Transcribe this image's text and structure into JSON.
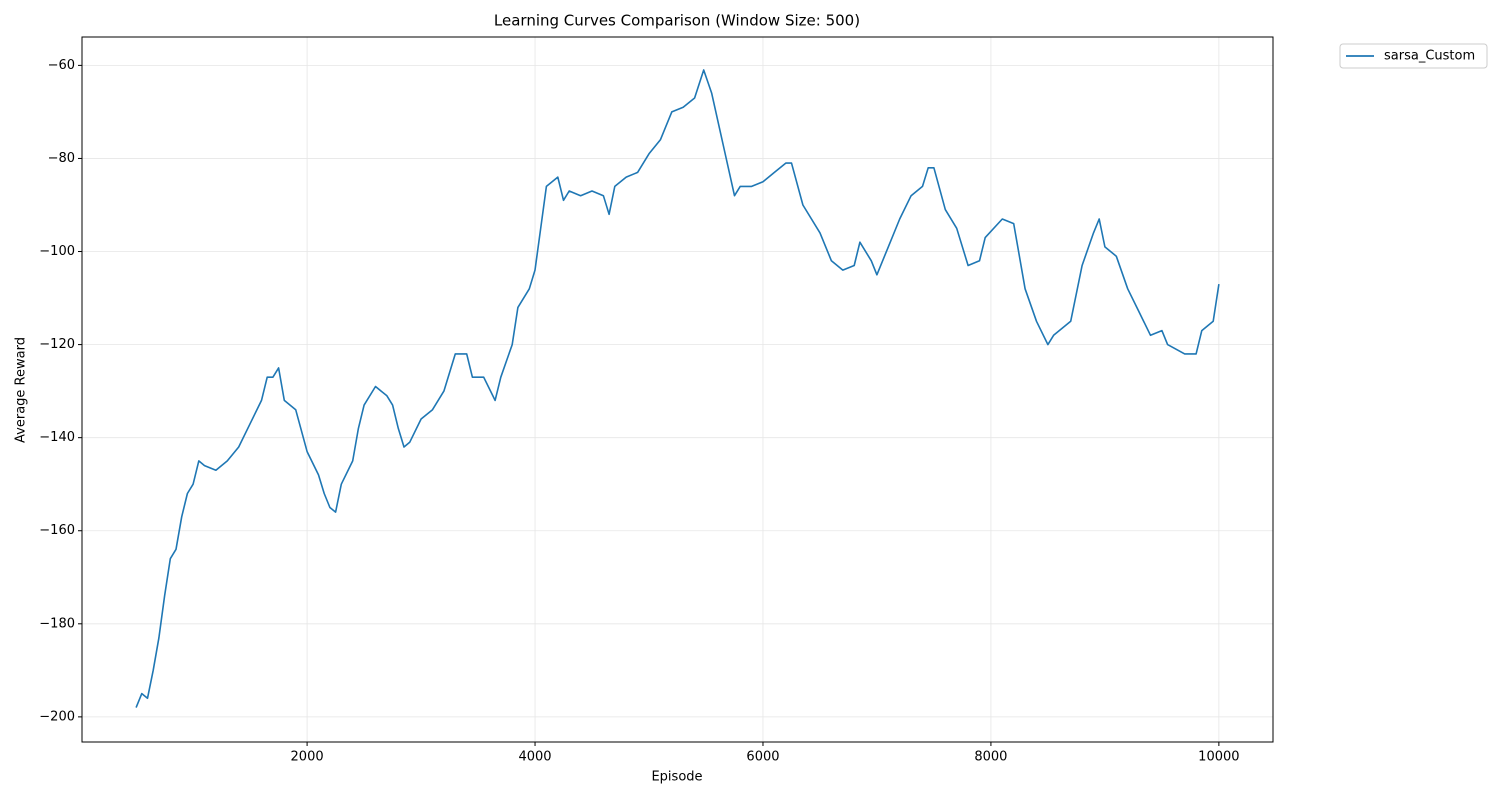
{
  "chart_data": {
    "type": "line",
    "title": "Learning Curves Comparison (Window Size: 500)",
    "xlabel": "Episode",
    "ylabel": "Average Reward",
    "x": [
      500,
      550,
      600,
      650,
      700,
      750,
      800,
      850,
      900,
      950,
      1000,
      1050,
      1100,
      1200,
      1300,
      1400,
      1500,
      1600,
      1650,
      1700,
      1750,
      1800,
      1900,
      2000,
      2100,
      2150,
      2200,
      2250,
      2300,
      2400,
      2450,
      2500,
      2600,
      2700,
      2750,
      2800,
      2850,
      2900,
      3000,
      3100,
      3200,
      3300,
      3400,
      3450,
      3550,
      3650,
      3700,
      3800,
      3850,
      3950,
      4000,
      4050,
      4100,
      4200,
      4250,
      4300,
      4400,
      4500,
      4600,
      4650,
      4700,
      4800,
      4900,
      5000,
      5100,
      5200,
      5300,
      5400,
      5480,
      5550,
      5650,
      5750,
      5800,
      5900,
      6000,
      6100,
      6200,
      6250,
      6350,
      6500,
      6600,
      6700,
      6800,
      6850,
      6950,
      7000,
      7100,
      7200,
      7300,
      7400,
      7450,
      7500,
      7600,
      7700,
      7800,
      7900,
      7950,
      8100,
      8200,
      8300,
      8400,
      8500,
      8550,
      8700,
      8800,
      8900,
      8950,
      9000,
      9100,
      9200,
      9300,
      9400,
      9500,
      9550,
      9700,
      9800,
      9850,
      9950,
      10000
    ],
    "series": [
      {
        "name": "sarsa_Custom",
        "color": "#1f77b4",
        "values": [
          -198,
          -195,
          -196,
          -190,
          -183,
          -174,
          -166,
          -164,
          -157,
          -152,
          -150,
          -145,
          -146,
          -147,
          -145,
          -142,
          -137,
          -132,
          -127,
          -127,
          -125,
          -132,
          -134,
          -143,
          -148,
          -152,
          -155,
          -156,
          -150,
          -145,
          -138,
          -133,
          -129,
          -131,
          -133,
          -138,
          -142,
          -141,
          -136,
          -134,
          -130,
          -122,
          -122,
          -127,
          -127,
          -132,
          -127,
          -120,
          -112,
          -108,
          -104,
          -95,
          -86,
          -84,
          -89,
          -87,
          -88,
          -87,
          -88,
          -92,
          -86,
          -84,
          -83,
          -79,
          -76,
          -70,
          -69,
          -67,
          -61,
          -66,
          -77,
          -88,
          -86,
          -86,
          -85,
          -83,
          -81,
          -81,
          -90,
          -96,
          -102,
          -104,
          -103,
          -98,
          -102,
          -105,
          -99,
          -93,
          -88,
          -86,
          -82,
          -82,
          -91,
          -95,
          -103,
          -102,
          -97,
          -93,
          -94,
          -108,
          -115,
          -120,
          -118,
          -115,
          -103,
          -96,
          -93,
          -99,
          -101,
          -108,
          -113,
          -118,
          -117,
          -120,
          -122,
          -122,
          -117,
          -115,
          -107
        ]
      }
    ],
    "xlim": [
      25,
      10475
    ],
    "ylim": [
      -205.4,
      -53.9
    ],
    "xticks": [
      2000,
      4000,
      6000,
      8000,
      10000
    ],
    "yticks": [
      {
        "value": -200,
        "label": "−200"
      },
      {
        "value": -180,
        "label": "−180"
      },
      {
        "value": -160,
        "label": "−160"
      },
      {
        "value": -140,
        "label": "−140"
      },
      {
        "value": -120,
        "label": "−120"
      },
      {
        "value": -100,
        "label": "−100"
      },
      {
        "value": -80,
        "label": "−80"
      },
      {
        "value": -60,
        "label": "−60"
      }
    ],
    "grid": true,
    "legend": "outside-right"
  }
}
